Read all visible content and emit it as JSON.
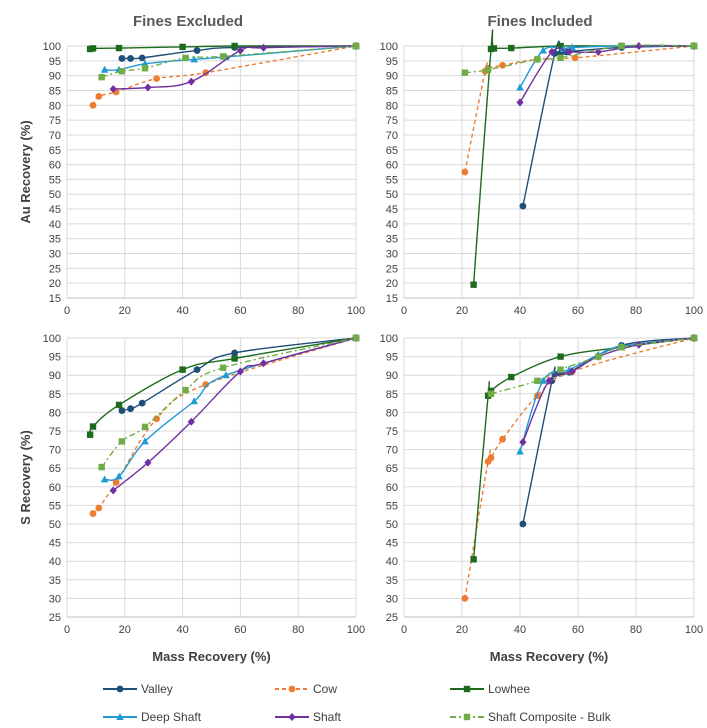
{
  "column_titles": [
    "Fines Excluded",
    "Fines Included"
  ],
  "shared_x_label": "Mass Recovery (%)",
  "chart_data": [
    {
      "type": "line",
      "title": "Fines Excluded",
      "xlabel": "",
      "ylabel": "Au Recovery (%)",
      "xlim": [
        0,
        100
      ],
      "ylim": [
        15,
        100
      ],
      "xticks": [
        0,
        20,
        40,
        60,
        80,
        100
      ],
      "yticks": [
        15,
        20,
        25,
        30,
        35,
        40,
        45,
        50,
        55,
        60,
        65,
        70,
        75,
        80,
        85,
        90,
        95,
        100
      ],
      "series": [
        {
          "name": "Valley",
          "points": [
            [
              19,
              95.8
            ],
            [
              22,
              95.8
            ],
            [
              26,
              96
            ],
            [
              45,
              98.5
            ],
            [
              58,
              99.5
            ],
            [
              100,
              100
            ]
          ]
        },
        {
          "name": "Cow",
          "points": [
            [
              9,
              80
            ],
            [
              11,
              83
            ],
            [
              17,
              84.5
            ],
            [
              31,
              89
            ],
            [
              48,
              91
            ],
            [
              100,
              100
            ]
          ]
        },
        {
          "name": "Lowhee",
          "points": [
            [
              8,
              99
            ],
            [
              9,
              99.2
            ],
            [
              18,
              99.3
            ],
            [
              40,
              99.7
            ],
            [
              58,
              100
            ],
            [
              100,
              100
            ]
          ]
        },
        {
          "name": "Deep Shaft",
          "points": [
            [
              13,
              92
            ],
            [
              18,
              92
            ],
            [
              27,
              94
            ],
            [
              44,
              95.5
            ],
            [
              55,
              96.3
            ],
            [
              100,
              100
            ]
          ]
        },
        {
          "name": "Shaft",
          "points": [
            [
              16,
              85.5
            ],
            [
              28,
              86
            ],
            [
              43,
              88
            ],
            [
              60,
              98.5
            ],
            [
              68,
              99.4
            ],
            [
              100,
              100
            ]
          ]
        },
        {
          "name": "Shaft Composite - Bulk",
          "points": [
            [
              12,
              89.5
            ],
            [
              19,
              91.5
            ],
            [
              27,
              92.5
            ],
            [
              41,
              96
            ],
            [
              54,
              96.5
            ],
            [
              100,
              100
            ]
          ]
        }
      ]
    },
    {
      "type": "line",
      "title": "Fines Included",
      "xlabel": "",
      "ylabel": "",
      "xlim": [
        0,
        100
      ],
      "ylim": [
        15,
        100
      ],
      "xticks": [
        0,
        20,
        40,
        60,
        80,
        100
      ],
      "yticks": [
        15,
        20,
        25,
        30,
        35,
        40,
        45,
        50,
        55,
        60,
        65,
        70,
        75,
        80,
        85,
        90,
        95,
        100
      ],
      "series": [
        {
          "name": "Valley",
          "points": [
            [
              41,
              46
            ],
            [
              52,
              97.5
            ],
            [
              54,
              97.5
            ],
            [
              56,
              98
            ],
            [
              75,
              99.5
            ],
            [
              100,
              100
            ]
          ]
        },
        {
          "name": "Cow",
          "points": [
            [
              21,
              57.5
            ],
            [
              28,
              91.5
            ],
            [
              29,
              92.5
            ],
            [
              34,
              93.5
            ],
            [
              46,
              95.5
            ],
            [
              59,
              96
            ],
            [
              100,
              100
            ]
          ]
        },
        {
          "name": "Lowhee",
          "points": [
            [
              24,
              19.5
            ],
            [
              30,
              99
            ],
            [
              31,
              99.2
            ],
            [
              37,
              99.3
            ],
            [
              54,
              100
            ],
            [
              75,
              100
            ],
            [
              100,
              100
            ]
          ]
        },
        {
          "name": "Deep Shaft",
          "points": [
            [
              40,
              86
            ],
            [
              48,
              98.5
            ],
            [
              55,
              99
            ],
            [
              58,
              99.5
            ],
            [
              75,
              100
            ],
            [
              100,
              100
            ]
          ]
        },
        {
          "name": "Shaft",
          "points": [
            [
              40,
              81
            ],
            [
              51,
              98
            ],
            [
              57,
              98
            ],
            [
              67,
              98
            ],
            [
              81,
              100
            ],
            [
              100,
              100
            ]
          ]
        },
        {
          "name": "Shaft Composite - Bulk",
          "points": [
            [
              21,
              91
            ],
            [
              29,
              92
            ],
            [
              46,
              95.5
            ],
            [
              54,
              96
            ],
            [
              75,
              100
            ],
            [
              100,
              100
            ]
          ]
        }
      ]
    },
    {
      "type": "line",
      "title": "",
      "xlabel": "Mass Recovery (%)",
      "ylabel": "S Recovery (%)",
      "xlim": [
        0,
        100
      ],
      "ylim": [
        25,
        100
      ],
      "xticks": [
        0,
        20,
        40,
        60,
        80,
        100
      ],
      "yticks": [
        25,
        30,
        35,
        40,
        45,
        50,
        55,
        60,
        65,
        70,
        75,
        80,
        85,
        90,
        95,
        100
      ],
      "series": [
        {
          "name": "Valley",
          "points": [
            [
              19,
              80.5
            ],
            [
              22,
              81
            ],
            [
              26,
              82.5
            ],
            [
              45,
              91.5
            ],
            [
              58,
              96
            ],
            [
              100,
              100
            ]
          ]
        },
        {
          "name": "Cow",
          "points": [
            [
              9,
              52.8
            ],
            [
              11,
              54.3
            ],
            [
              17,
              61.2
            ],
            [
              31,
              78.3
            ],
            [
              48,
              87.5
            ],
            [
              100,
              100
            ]
          ]
        },
        {
          "name": "Lowhee",
          "points": [
            [
              8,
              74
            ],
            [
              9,
              76.2
            ],
            [
              18,
              82
            ],
            [
              40,
              91.5
            ],
            [
              58,
              94.5
            ],
            [
              100,
              100
            ]
          ]
        },
        {
          "name": "Deep Shaft",
          "points": [
            [
              13,
              62
            ],
            [
              18,
              62.8
            ],
            [
              27,
              72.2
            ],
            [
              44,
              83
            ],
            [
              55,
              90
            ],
            [
              100,
              100
            ]
          ]
        },
        {
          "name": "Shaft",
          "points": [
            [
              16,
              59
            ],
            [
              28,
              66.5
            ],
            [
              43,
              77.5
            ],
            [
              60,
              91
            ],
            [
              68,
              93.2
            ],
            [
              100,
              100
            ]
          ]
        },
        {
          "name": "Shaft Composite - Bulk",
          "points": [
            [
              12,
              65.3
            ],
            [
              19,
              72.2
            ],
            [
              27,
              76.1
            ],
            [
              41,
              86
            ],
            [
              54,
              92
            ],
            [
              100,
              100
            ]
          ]
        }
      ]
    },
    {
      "type": "line",
      "title": "",
      "xlabel": "Mass Recovery (%)",
      "ylabel": "",
      "xlim": [
        0,
        100
      ],
      "ylim": [
        25,
        100
      ],
      "xticks": [
        0,
        20,
        40,
        60,
        80,
        100
      ],
      "yticks": [
        25,
        30,
        35,
        40,
        45,
        50,
        55,
        60,
        65,
        70,
        75,
        80,
        85,
        90,
        95,
        100
      ],
      "series": [
        {
          "name": "Valley",
          "points": [
            [
              41,
              50
            ],
            [
              51,
              88.5
            ],
            [
              52,
              90.3
            ],
            [
              54,
              90.5
            ],
            [
              57,
              90.8
            ],
            [
              75,
              98
            ],
            [
              100,
              100
            ]
          ]
        },
        {
          "name": "Cow",
          "points": [
            [
              21,
              30
            ],
            [
              29,
              66.8
            ],
            [
              30,
              67.8
            ],
            [
              34,
              72.8
            ],
            [
              46,
              84.5
            ],
            [
              58,
              91
            ],
            [
              100,
              100
            ]
          ]
        },
        {
          "name": "Lowhee",
          "points": [
            [
              24,
              40.5
            ],
            [
              29,
              84.5
            ],
            [
              30,
              85.8
            ],
            [
              37,
              89.5
            ],
            [
              54,
              95
            ],
            [
              75,
              97.5
            ],
            [
              100,
              100
            ]
          ]
        },
        {
          "name": "Deep Shaft",
          "points": [
            [
              40,
              69.5
            ],
            [
              48,
              88.5
            ],
            [
              57,
              91.5
            ],
            [
              67,
              95.5
            ],
            [
              75,
              97.8
            ],
            [
              100,
              100
            ]
          ]
        },
        {
          "name": "Shaft",
          "points": [
            [
              41,
              72
            ],
            [
              50,
              88.5
            ],
            [
              58,
              91
            ],
            [
              67,
              95
            ],
            [
              81,
              98.2
            ],
            [
              100,
              100
            ]
          ]
        },
        {
          "name": "Shaft Composite - Bulk",
          "points": [
            [
              30,
              85
            ],
            [
              46,
              88.5
            ],
            [
              54,
              91.5
            ],
            [
              67,
              95
            ],
            [
              75,
              97.5
            ],
            [
              100,
              100
            ]
          ]
        }
      ]
    }
  ],
  "legend": [
    {
      "name": "Valley",
      "color": "#1f4e79",
      "marker": "circle",
      "dash": "solid"
    },
    {
      "name": "Cow",
      "color": "#ed7d31",
      "marker": "circle",
      "dash": "dash"
    },
    {
      "name": "Lowhee",
      "color": "#1e6b1e",
      "marker": "square",
      "dash": "solid"
    },
    {
      "name": "Deep Shaft",
      "color": "#1f9ad6",
      "marker": "triangle",
      "dash": "solid"
    },
    {
      "name": "Shaft",
      "color": "#7030a0",
      "marker": "diamond",
      "dash": "solid"
    },
    {
      "name": "Shaft Composite - Bulk",
      "color": "#70ad47",
      "marker": "square",
      "dash": "dashdot"
    }
  ]
}
